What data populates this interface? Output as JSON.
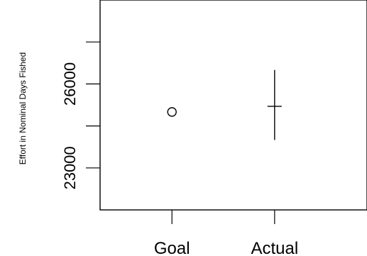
{
  "chart_data": {
    "type": "scatter",
    "title": "",
    "xlabel": "",
    "ylabel": "Effort in Nominal Days Fished",
    "categories": [
      "Goal",
      "Actual"
    ],
    "xlim": [
      0.3,
      2.9
    ],
    "ylim": [
      21500,
      29000
    ],
    "y_ticks": [
      23000,
      26000
    ],
    "y_tick_labels": [
      "23000",
      "26000"
    ],
    "grid": false,
    "legend": "none",
    "points": [
      {
        "category": "Goal",
        "value": 25000,
        "marker": "circle"
      },
      {
        "category": "Actual",
        "value": 25200,
        "marker": "errorbar",
        "low": 24000,
        "high": 26500
      }
    ],
    "colors": {
      "background": "#ffffff",
      "ink": "#000000"
    }
  }
}
